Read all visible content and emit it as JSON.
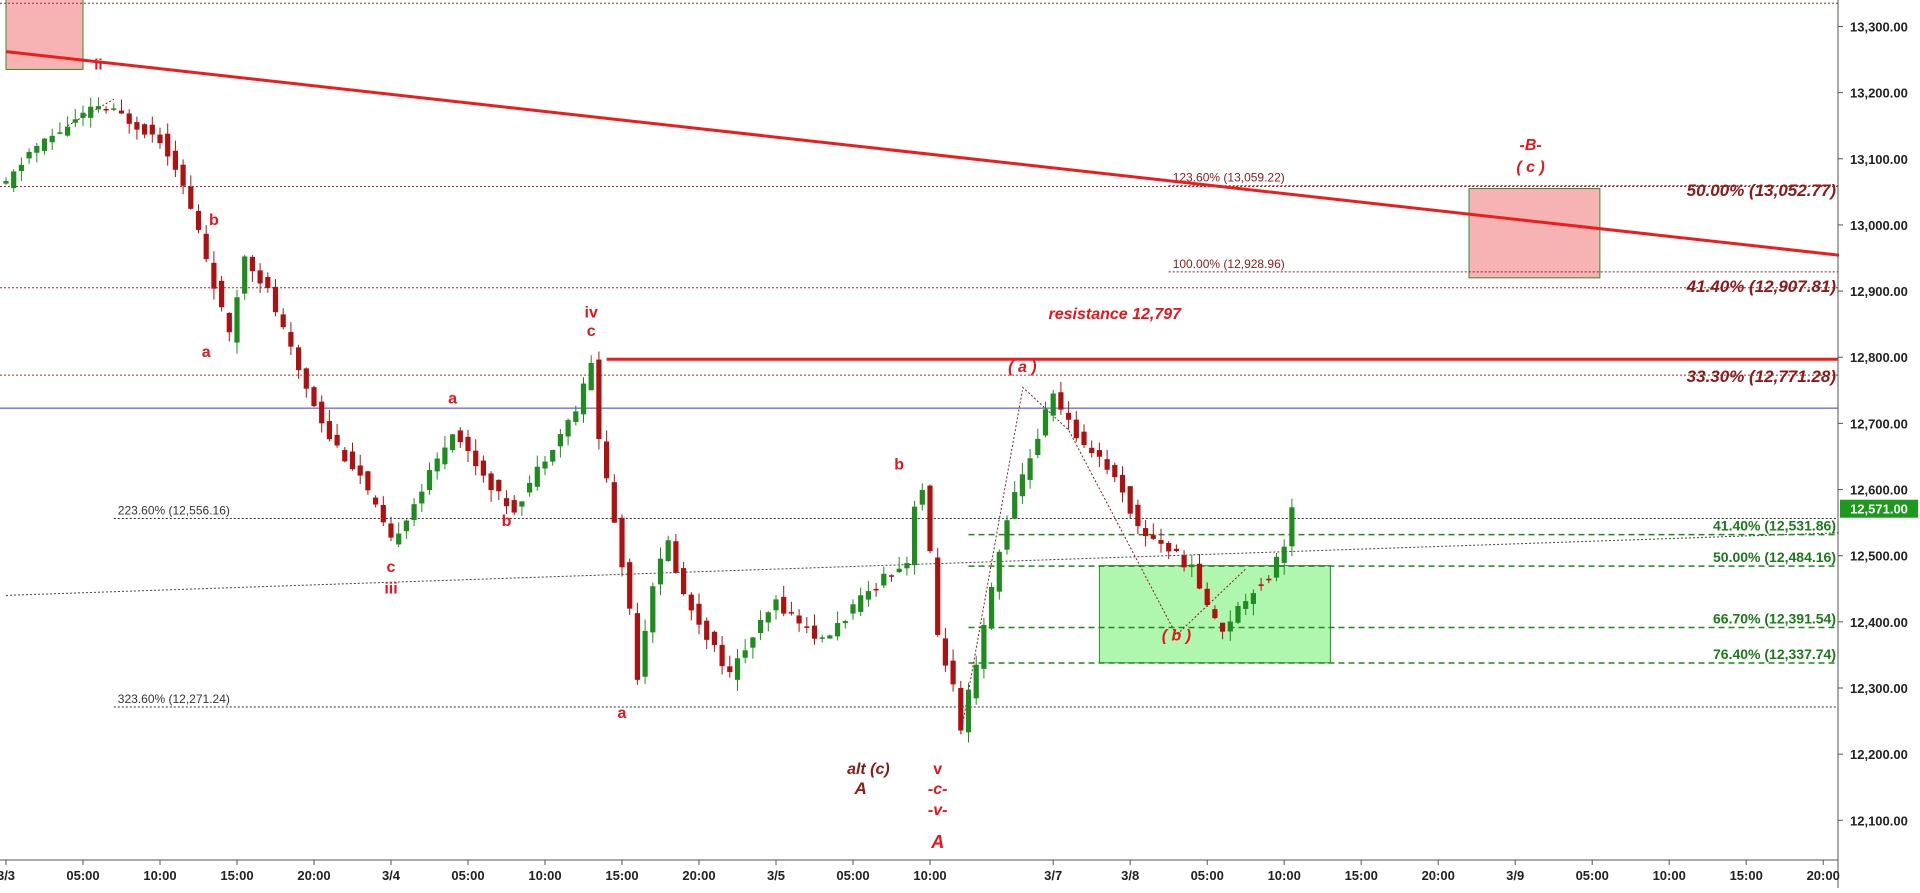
{
  "chart_data": {
    "type": "candlestick",
    "y_range": [
      12040,
      13340
    ],
    "y_ticks": [
      {
        "value": 13300,
        "label": "13,300.00"
      },
      {
        "value": 13200,
        "label": "13,200.00"
      },
      {
        "value": 13100,
        "label": "13,100.00"
      },
      {
        "value": 13000,
        "label": "13,000.00"
      },
      {
        "value": 12900,
        "label": "12,900.00"
      },
      {
        "value": 12800,
        "label": "12,800.00"
      },
      {
        "value": 12700,
        "label": "12,700.00"
      },
      {
        "value": 12600,
        "label": "12,600.00"
      },
      {
        "value": 12500,
        "label": "12,500.00"
      },
      {
        "value": 12400,
        "label": "12,400.00"
      },
      {
        "value": 12300,
        "label": "12,300.00"
      },
      {
        "value": 12200,
        "label": "12,200.00"
      },
      {
        "value": 12100,
        "label": "12,100.00"
      }
    ],
    "x_ticks": [
      {
        "i": 0,
        "label": "3/3"
      },
      {
        "i": 10,
        "label": "05:00"
      },
      {
        "i": 20,
        "label": "10:00"
      },
      {
        "i": 30,
        "label": "15:00"
      },
      {
        "i": 40,
        "label": "20:00"
      },
      {
        "i": 50,
        "label": "3/4"
      },
      {
        "i": 60,
        "label": "05:00"
      },
      {
        "i": 70,
        "label": "10:00"
      },
      {
        "i": 80,
        "label": "15:00"
      },
      {
        "i": 90,
        "label": "20:00"
      },
      {
        "i": 100,
        "label": "3/5"
      },
      {
        "i": 110,
        "label": "05:00"
      },
      {
        "i": 120,
        "label": "10:00"
      },
      {
        "i": 136,
        "label": "3/7"
      },
      {
        "i": 146,
        "label": "3/8"
      },
      {
        "i": 156,
        "label": "05:00"
      },
      {
        "i": 166,
        "label": "10:00"
      },
      {
        "i": 176,
        "label": "15:00"
      },
      {
        "i": 186,
        "label": "20:00"
      },
      {
        "i": 196,
        "label": "3/9"
      },
      {
        "i": 206,
        "label": "05:00"
      },
      {
        "i": 216,
        "label": "10:00"
      },
      {
        "i": 226,
        "label": "15:00"
      },
      {
        "i": 236,
        "label": "20:00"
      }
    ],
    "last_price": {
      "value": 12571,
      "label": "12,571.00"
    },
    "price_path": [
      [
        0,
        13060
      ],
      [
        3,
        13110
      ],
      [
        8,
        13150
      ],
      [
        12,
        13180
      ],
      [
        15,
        13165
      ],
      [
        20,
        13130
      ],
      [
        22,
        13090
      ],
      [
        25,
        12990
      ],
      [
        28,
        12870
      ],
      [
        29,
        12830
      ],
      [
        31,
        12955
      ],
      [
        34,
        12900
      ],
      [
        38,
        12780
      ],
      [
        42,
        12680
      ],
      [
        46,
        12620
      ],
      [
        50,
        12520
      ],
      [
        54,
        12600
      ],
      [
        58,
        12690
      ],
      [
        61,
        12640
      ],
      [
        64,
        12590
      ],
      [
        66,
        12570
      ],
      [
        70,
        12650
      ],
      [
        74,
        12720
      ],
      [
        76,
        12790
      ],
      [
        77,
        12680
      ],
      [
        79,
        12550
      ],
      [
        81,
        12420
      ],
      [
        82,
        12320
      ],
      [
        84,
        12460
      ],
      [
        86,
        12520
      ],
      [
        88,
        12440
      ],
      [
        92,
        12360
      ],
      [
        94,
        12320
      ],
      [
        96,
        12360
      ],
      [
        100,
        12430
      ],
      [
        102,
        12410
      ],
      [
        106,
        12370
      ],
      [
        110,
        12420
      ],
      [
        114,
        12470
      ],
      [
        117,
        12490
      ],
      [
        118,
        12580
      ],
      [
        119,
        12600
      ],
      [
        120,
        12500
      ],
      [
        121,
        12380
      ],
      [
        123,
        12300
      ],
      [
        124,
        12230
      ],
      [
        125,
        12290
      ],
      [
        126,
        12330
      ],
      [
        128,
        12450
      ],
      [
        130,
        12560
      ],
      [
        132,
        12620
      ],
      [
        134,
        12680
      ],
      [
        136,
        12750
      ],
      [
        137,
        12720
      ],
      [
        139,
        12680
      ],
      [
        142,
        12650
      ],
      [
        145,
        12600
      ],
      [
        147,
        12540
      ],
      [
        150,
        12520
      ],
      [
        154,
        12480
      ],
      [
        157,
        12400
      ],
      [
        158,
        12390
      ],
      [
        160,
        12420
      ],
      [
        162,
        12450
      ],
      [
        164,
        12470
      ],
      [
        166,
        12520
      ],
      [
        167,
        12571
      ]
    ],
    "trend_line": {
      "from": [
        0,
        13262
      ],
      "to": [
        239,
        12953
      ]
    },
    "resistance": {
      "value": 12797,
      "from_i": 78,
      "to_i": 239,
      "label": "resistance 12,797"
    },
    "blue_line": {
      "value": 12723
    },
    "support_line": {
      "from": [
        0,
        12440
      ],
      "to": [
        239,
        12535
      ]
    },
    "red_zones": [
      {
        "from_i": 0,
        "to_i": 10,
        "top": 13360,
        "bottom": 13235
      },
      {
        "from_i": 190,
        "to_i": 207,
        "top": 13055,
        "bottom": 12920
      }
    ],
    "green_zone": {
      "from_i": 142,
      "to_i": 172,
      "top": 12485,
      "bottom": 12338
    },
    "right_levels": [
      {
        "value": 13052.77,
        "label": "50.00% (13,052.77)",
        "color": "#8b1a1a"
      },
      {
        "value": 12907.81,
        "label": "41.40% (12,907.81)",
        "color": "#8b1a1a"
      },
      {
        "value": 12771.28,
        "label": "33.30% (12,771.28)",
        "color": "#8b1a1a"
      }
    ],
    "green_levels": [
      {
        "value": 12531.86,
        "label": "41.40% (12,531.86)"
      },
      {
        "value": 12484.16,
        "label": "50.00% (12,484.16)"
      },
      {
        "value": 12391.54,
        "label": "66.70% (12,391.54)"
      },
      {
        "value": 12337.74,
        "label": "76.40% (12,337.74)"
      }
    ],
    "ext_levels": [
      {
        "value": 13059.22,
        "label": "123.60% (13,059.22)",
        "from_i": 151,
        "color": "#8b1a1a"
      },
      {
        "value": 12928.96,
        "label": "100.00% (12,928.96)",
        "from_i": 151,
        "color": "#8b1a1a"
      },
      {
        "value": 12556.16,
        "label": "223.60% (12,556.16)",
        "from_i": 14,
        "color": "#333333"
      },
      {
        "value": 12271.24,
        "label": "323.60% (12,271.24)",
        "from_i": 14,
        "color": "#333333"
      }
    ],
    "plain_dotted": [
      {
        "value": 13335
      },
      {
        "value": 13058
      },
      {
        "value": 12905
      },
      {
        "value": 12773
      }
    ],
    "wave_labels": [
      {
        "text": "ii",
        "i": 12,
        "v": 13235,
        "color": "#e8141b",
        "size": 15,
        "italic": false
      },
      {
        "text": "b",
        "i": 27,
        "v": 13000,
        "color": "#e8141b",
        "size": 16,
        "italic": false
      },
      {
        "text": "a",
        "i": 26,
        "v": 12800,
        "color": "#e8141b",
        "size": 16,
        "italic": false
      },
      {
        "text": "a",
        "i": 58,
        "v": 12730,
        "color": "#e8141b",
        "size": 16,
        "italic": false
      },
      {
        "text": "b",
        "i": 65,
        "v": 12545,
        "color": "#e8141b",
        "size": 16,
        "italic": false
      },
      {
        "text": "c",
        "i": 50,
        "v": 12475,
        "color": "#e8141b",
        "size": 16,
        "italic": false
      },
      {
        "text": "iii",
        "i": 50,
        "v": 12443,
        "color": "#e8141b",
        "size": 16,
        "italic": false
      },
      {
        "text": "iv",
        "i": 76,
        "v": 12860,
        "color": "#e8141b",
        "size": 16,
        "italic": false
      },
      {
        "text": "c",
        "i": 76,
        "v": 12832,
        "color": "#e8141b",
        "size": 16,
        "italic": false
      },
      {
        "text": "a",
        "i": 80,
        "v": 12255,
        "color": "#e8141b",
        "size": 16,
        "italic": false
      },
      {
        "text": "b",
        "i": 116,
        "v": 12630,
        "color": "#e8141b",
        "size": 16,
        "italic": false
      },
      {
        "text": "v",
        "i": 121,
        "v": 12170,
        "color": "#e8141b",
        "size": 16,
        "italic": false
      },
      {
        "text": "-c-",
        "i": 121,
        "v": 12140,
        "color": "#e8141b",
        "size": 16,
        "italic": true
      },
      {
        "text": "-v-",
        "i": 121,
        "v": 12108,
        "color": "#e8141b",
        "size": 16,
        "italic": true
      },
      {
        "text": "A",
        "i": 121,
        "v": 12058,
        "color": "#e8141b",
        "size": 18,
        "italic": true
      },
      {
        "text": "alt (c)",
        "i": 112,
        "v": 12170,
        "color": "#8b1a1a",
        "size": 16,
        "italic": true
      },
      {
        "text": "A",
        "i": 111,
        "v": 12140,
        "color": "#8b1a1a",
        "size": 17,
        "italic": true
      },
      {
        "text": "resistance 12,797",
        "i": 144,
        "v": 12858,
        "color": "#e8141b",
        "size": 16,
        "italic": true
      },
      {
        "text": "( a )",
        "i": 132,
        "v": 12778,
        "color": "#e8141b",
        "size": 16,
        "italic": true
      },
      {
        "text": "( b )",
        "i": 152,
        "v": 12372,
        "color": "#e8141b",
        "size": 16,
        "italic": true
      },
      {
        "text": "-B-",
        "i": 198,
        "v": 13113,
        "color": "#e8141b",
        "size": 16,
        "italic": true
      },
      {
        "text": "( c )",
        "i": 198,
        "v": 13080,
        "color": "#e8141b",
        "size": 16,
        "italic": true
      }
    ],
    "wave_paths": [
      {
        "points": [
          [
            8,
            13150
          ],
          [
            14,
            13190
          ]
        ]
      },
      {
        "points": [
          [
            124,
            12230
          ],
          [
            132,
            12750
          ]
        ]
      },
      {
        "points": [
          [
            132,
            12755
          ],
          [
            138,
            12690
          ],
          [
            152,
            12380
          ],
          [
            161,
            12480
          ]
        ]
      }
    ]
  }
}
